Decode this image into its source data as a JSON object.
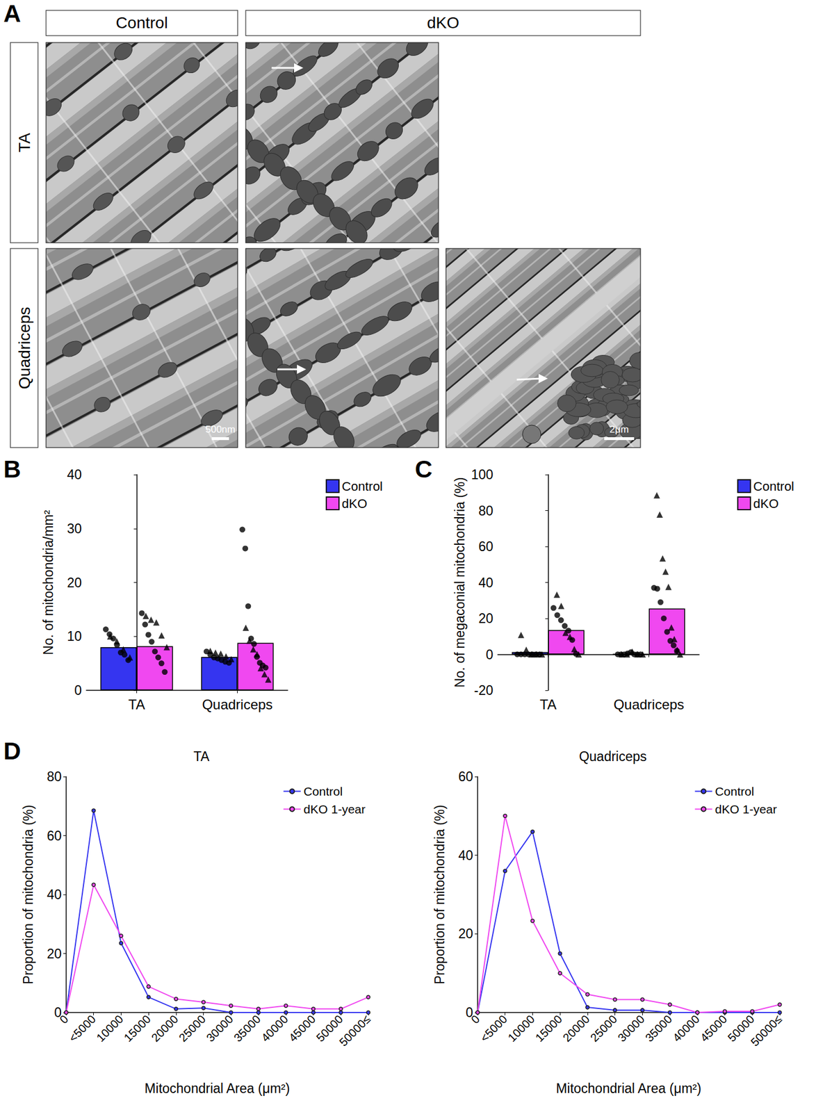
{
  "micrographs": {
    "panel": "A",
    "column_headers": [
      "Control",
      "dKO"
    ],
    "row_headers": [
      "TA",
      "Quadriceps"
    ],
    "scale_bars": [
      "500nm",
      "2μm"
    ]
  },
  "chart_data": [
    {
      "panel": "B",
      "type": "bar",
      "y_label": "No. of mitochondria/mm²",
      "categories": [
        "TA",
        "Quadriceps"
      ],
      "ylim": [
        0,
        40
      ],
      "yticks": [
        0,
        10,
        20,
        30,
        40
      ],
      "grid": false,
      "legend": "top-right",
      "series": [
        {
          "name": "Control",
          "color": "#3535f0",
          "values": [
            8.0,
            6.2
          ],
          "points": [
            {
              "marker": "circle",
              "values": [
                [
                  11.3,
                  10.4,
                  9.6,
                  8.4,
                  7.0,
                  6.6,
                  5.6
                ],
                [
                  7.2,
                  6.6,
                  6.1,
                  5.9,
                  5.6,
                  5.3,
                  5.1
                ]
              ]
            },
            {
              "marker": "triangle",
              "values": [
                [
                  10.0,
                  9.1,
                  7.6,
                  6.1
                ],
                [
                  7.3,
                  7.0,
                  6.8,
                  6.3,
                  5.8
                ]
              ]
            }
          ]
        },
        {
          "name": "dKO",
          "color": "#f048f0",
          "values": [
            8.2,
            8.8
          ],
          "points": [
            {
              "marker": "circle",
              "values": [
                [
                  14.3,
                  12.2,
                  10.3,
                  9.0,
                  7.2,
                  6.1,
                  5.0,
                  3.4
                ],
                [
                  29.8,
                  26.3,
                  15.6,
                  9.6,
                  8.6,
                  6.2,
                  5.1,
                  4.6,
                  4.2
                ]
              ]
            },
            {
              "marker": "triangle",
              "values": [
                [
                  13.8,
                  13.1,
                  12.6,
                  10.2,
                  8.0
                ],
                [
                  11.6,
                  9.2,
                  7.6,
                  6.7,
                  4.1,
                  3.0,
                  2.0
                ]
              ]
            }
          ]
        }
      ]
    },
    {
      "panel": "C",
      "type": "bar",
      "y_label": "No. of megaconial mitochondria (%)",
      "categories": [
        "TA",
        "Quadriceps"
      ],
      "ylim": [
        -20,
        100
      ],
      "yticks": [
        -20,
        0,
        20,
        40,
        60,
        80,
        100
      ],
      "grid": false,
      "legend": "top-right",
      "series": [
        {
          "name": "Control",
          "color": "#3535f0",
          "values": [
            1.3,
            0.2
          ],
          "points": [
            {
              "marker": "circle",
              "values": [
                [
                  0,
                  0,
                  0,
                  0,
                  0,
                  0,
                  0
                ],
                [
                  0,
                  0,
                  0,
                  0.5,
                  1.2,
                  0,
                  0,
                  0
                ]
              ]
            },
            {
              "marker": "triangle",
              "values": [
                [
                  10.8,
                  2.6,
                  0,
                  0,
                  0
                ],
                [
                  0,
                  0,
                  1.5,
                  0,
                  0
                ]
              ]
            }
          ]
        },
        {
          "name": "dKO",
          "color": "#f048f0",
          "values": [
            13.5,
            25.5
          ],
          "points": [
            {
              "marker": "circle",
              "values": [
                [
                  25.8,
                  21.8,
                  19.0,
                  15.8,
                  13.2,
                  8.0,
                  0.3
                ],
                [
                  37.0,
                  36.5,
                  29.0,
                  20.0,
                  12.5,
                  7.5,
                  5.0,
                  2.0
                ]
              ]
            },
            {
              "marker": "triangle",
              "values": [
                [
                  33.2,
                  27.0,
                  12.0,
                  9.8,
                  3.0,
                  0
                ],
                [
                  88.5,
                  77.8,
                  53.4,
                  46.0,
                  37.5,
                  15.0,
                  8.5,
                  2.5,
                  0
                ]
              ]
            }
          ]
        }
      ]
    },
    {
      "panel": "D",
      "type": "line",
      "title": "TA",
      "x_label": "Mitochondrial Area (μm²)",
      "y_label": "Proportion of mitochondria (%)",
      "categories": [
        "0",
        "<5000",
        "10000",
        "15000",
        "20000",
        "25000",
        "30000",
        "35000",
        "40000",
        "45000",
        "50000",
        "50000≤"
      ],
      "ylim": [
        0,
        80
      ],
      "yticks": [
        0,
        20,
        40,
        60,
        80
      ],
      "grid": false,
      "legend": "top-right",
      "marker": "circle",
      "series": [
        {
          "name": "Control",
          "color": "#3535f0",
          "values": [
            0,
            68.5,
            23.5,
            5.2,
            1.2,
            1.5,
            0,
            0,
            0,
            0,
            0,
            0
          ]
        },
        {
          "name": "dKO 1-year",
          "color": "#f048f0",
          "values": [
            0,
            43.3,
            26.0,
            8.8,
            4.6,
            3.5,
            2.3,
            1.2,
            2.3,
            1.2,
            1.2,
            5.2
          ]
        }
      ]
    },
    {
      "type": "line",
      "title": "Quadriceps",
      "x_label": "Mitochondrial Area (μm²)",
      "y_label": "Proportion of mitochondria (%)",
      "categories": [
        "0",
        "<5000",
        "10000",
        "15000",
        "20000",
        "25000",
        "30000",
        "35000",
        "40000",
        "45000",
        "50000",
        "50000≤"
      ],
      "ylim": [
        0,
        60
      ],
      "yticks": [
        0,
        20,
        40,
        60
      ],
      "grid": false,
      "legend": "top-right",
      "marker": "circle",
      "series": [
        {
          "name": "Control",
          "color": "#3535f0",
          "values": [
            0,
            36.0,
            46.0,
            15.0,
            1.3,
            0.6,
            0.6,
            0,
            0,
            0,
            0,
            0
          ]
        },
        {
          "name": "dKO 1-year",
          "color": "#f048f0",
          "values": [
            0,
            50.0,
            23.3,
            10.0,
            4.6,
            3.3,
            3.3,
            2.0,
            0,
            0.3,
            0.3,
            2.0
          ]
        }
      ]
    }
  ]
}
